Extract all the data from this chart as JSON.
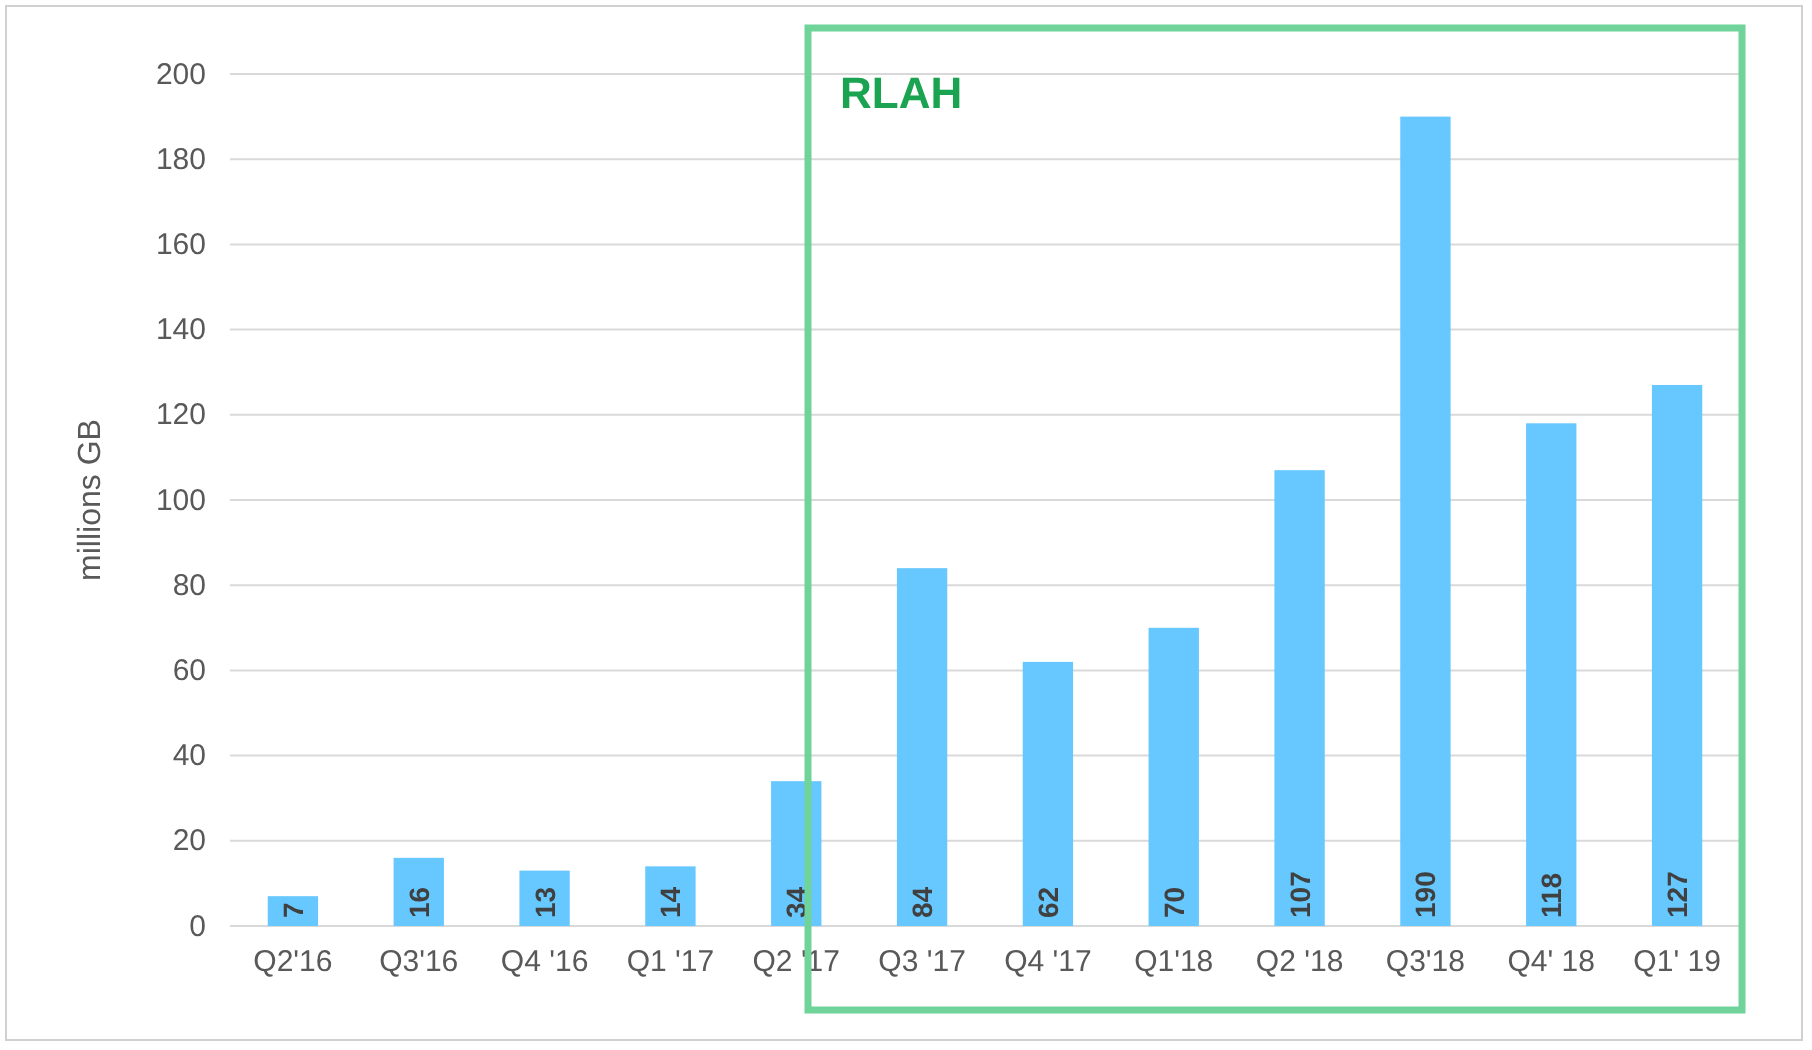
{
  "chart_data": {
    "type": "bar",
    "ylabel": "millions GB",
    "categories": [
      "Q2'16",
      "Q3'16",
      "Q4 '16",
      "Q1 '17",
      "Q2 '17",
      "Q3 '17",
      "Q4 '17",
      "Q1'18",
      "Q2 '18",
      "Q3'18",
      "Q4' 18",
      "Q1' 19"
    ],
    "values": [
      7,
      16,
      13,
      14,
      34,
      84,
      62,
      70,
      107,
      190,
      118,
      127
    ],
    "color": "#66c8ff",
    "ylim": [
      0,
      200
    ],
    "yticks": [
      0,
      20,
      40,
      60,
      80,
      100,
      120,
      140,
      160,
      180,
      200
    ],
    "grid": "y",
    "data_labels": true,
    "annotations": [
      "RLAH"
    ]
  }
}
